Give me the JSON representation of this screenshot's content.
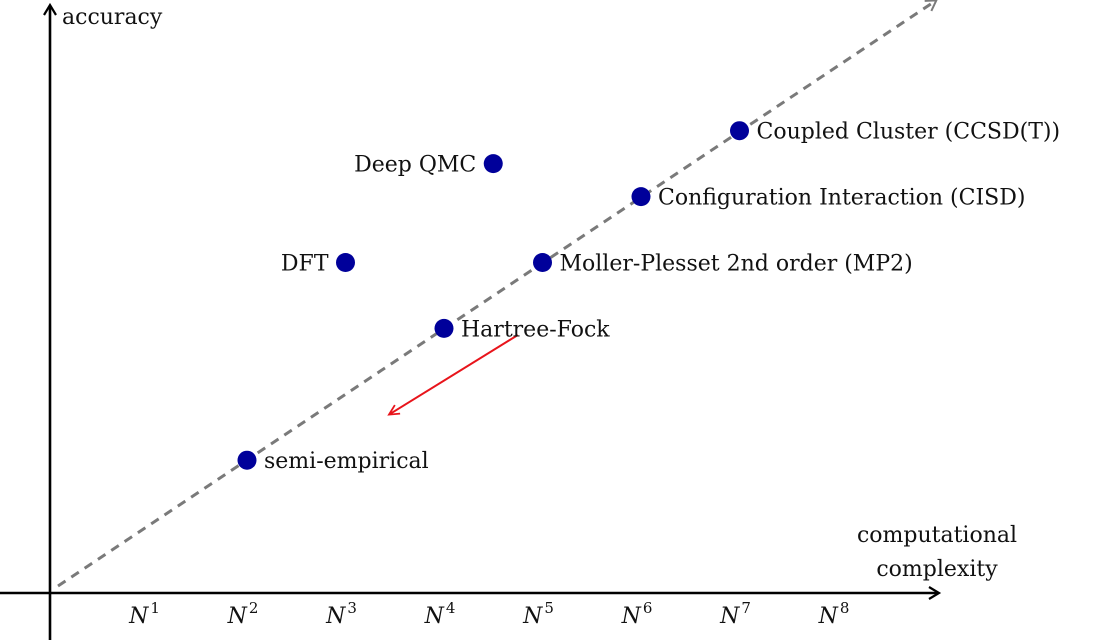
{
  "chart_data": {
    "type": "scatter",
    "title": "",
    "ylabel": "accuracy",
    "xlabel_lines": [
      "computational",
      "complexity"
    ],
    "x_ticks": [
      {
        "base": "N",
        "exp": "1",
        "x": 1
      },
      {
        "base": "N",
        "exp": "2",
        "x": 2
      },
      {
        "base": "N",
        "exp": "3",
        "x": 3
      },
      {
        "base": "N",
        "exp": "4",
        "x": 4
      },
      {
        "base": "N",
        "exp": "5",
        "x": 5
      },
      {
        "base": "N",
        "exp": "6",
        "x": 6
      },
      {
        "base": "N",
        "exp": "7",
        "x": 7
      },
      {
        "base": "N",
        "exp": "8",
        "x": 8
      }
    ],
    "xlim": [
      0,
      9
    ],
    "ylim": [
      0,
      9
    ],
    "points": [
      {
        "name": "semi-empirical",
        "x": 2,
        "y": 2,
        "label_side": "right"
      },
      {
        "name": "Hartree-Fock",
        "x": 4,
        "y": 4,
        "label_side": "right"
      },
      {
        "name": "Moller-Plesset 2nd order (MP2)",
        "x": 5,
        "y": 5,
        "label_side": "right"
      },
      {
        "name": "Configuration Interaction (CISD)",
        "x": 6,
        "y": 6,
        "label_side": "right"
      },
      {
        "name": "Coupled Cluster (CCSD(T))",
        "x": 7,
        "y": 7,
        "label_side": "right"
      },
      {
        "name": "DFT",
        "x": 3,
        "y": 5,
        "label_side": "left"
      },
      {
        "name": "Deep QMC",
        "x": 4.5,
        "y": 6.5,
        "label_side": "left"
      }
    ],
    "trend_line": {
      "style": "dashed",
      "color": "#7a7a7a",
      "from": [
        0,
        0
      ],
      "to": [
        9,
        9
      ]
    },
    "arrow": {
      "color": "#e8141b",
      "from": [
        4.75,
        3.9
      ],
      "to": [
        3.45,
        2.7
      ]
    },
    "marker_color": "#00009a",
    "grid": false
  }
}
